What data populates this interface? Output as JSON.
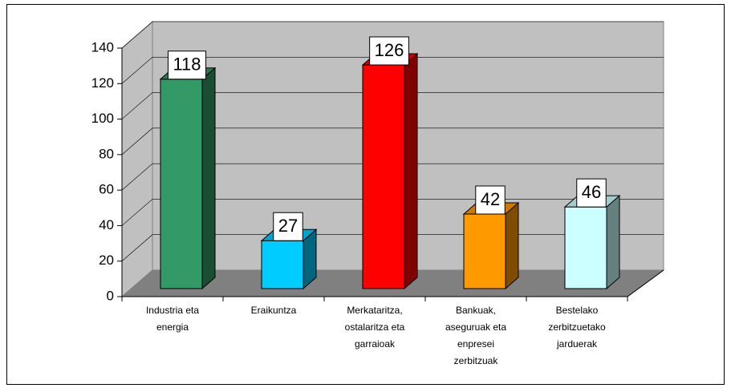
{
  "chart_data": {
    "type": "bar3d",
    "categories": [
      "Industria eta energia",
      "Eraikuntza",
      "Merkataritza, ostalaritza eta garraioak",
      "Bankuak, aseguruak eta enpresei zerbitzuak",
      "Bestelako zerbitzuetako jarduerak"
    ],
    "values": [
      118,
      27,
      126,
      42,
      46
    ],
    "colors": [
      "#339966",
      "#00ccff",
      "#ff0000",
      "#ff9900",
      "#ccffff"
    ],
    "ylim": [
      0,
      140
    ],
    "yticks": [
      0,
      20,
      40,
      60,
      80,
      100,
      120,
      140
    ],
    "grid": true
  }
}
